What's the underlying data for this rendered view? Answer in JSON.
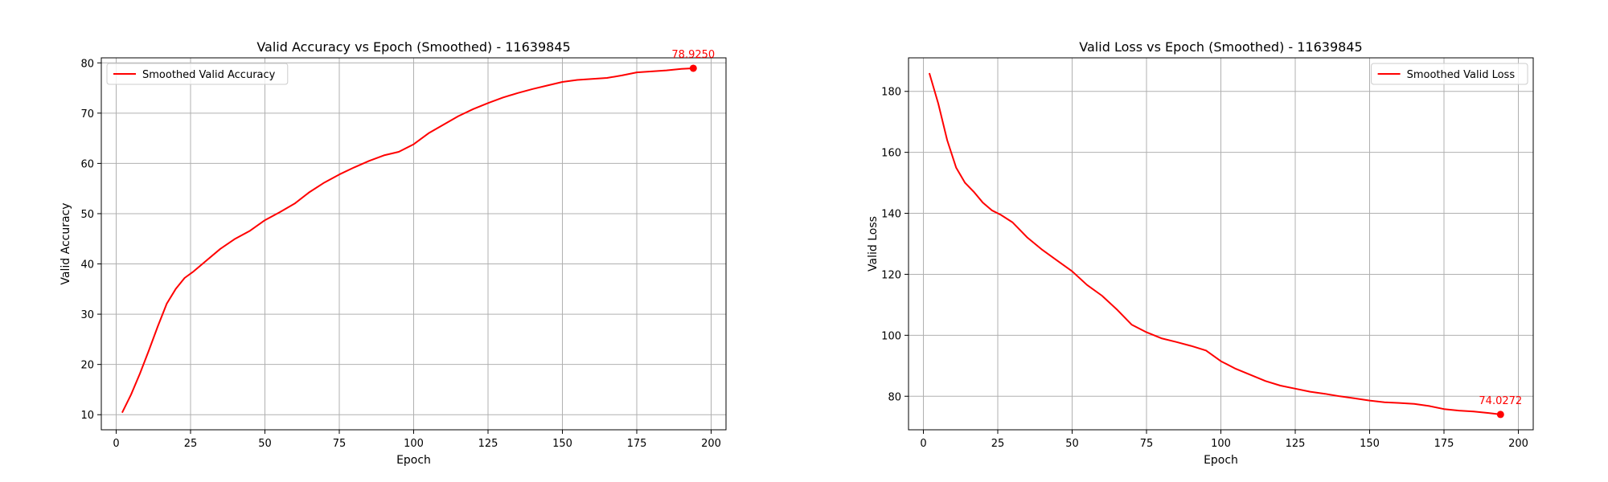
{
  "chart_data": [
    {
      "type": "line",
      "title": "Valid Accuracy vs Epoch (Smoothed) - 11639845",
      "xlabel": "Epoch",
      "ylabel": "Valid Accuracy",
      "xlim": [
        -5,
        205
      ],
      "ylim": [
        7,
        81
      ],
      "xticks": [
        0,
        25,
        50,
        75,
        100,
        125,
        150,
        175,
        200
      ],
      "yticks": [
        10,
        20,
        30,
        40,
        50,
        60,
        70,
        80
      ],
      "grid": true,
      "legend_position": "top-left",
      "series": [
        {
          "name": "Smoothed Valid Accuracy",
          "color": "#ff0000",
          "x": [
            2,
            5,
            8,
            11,
            14,
            17,
            20,
            23,
            26,
            30,
            35,
            40,
            45,
            50,
            55,
            60,
            65,
            70,
            75,
            80,
            85,
            90,
            95,
            100,
            105,
            110,
            115,
            120,
            125,
            130,
            135,
            140,
            145,
            150,
            155,
            160,
            165,
            170,
            175,
            180,
            185,
            190,
            194
          ],
          "y": [
            10.4,
            14.0,
            18.2,
            22.8,
            27.6,
            32.1,
            35.0,
            37.2,
            38.5,
            40.5,
            43.0,
            45.0,
            46.6,
            48.7,
            50.3,
            52.0,
            54.3,
            56.2,
            57.8,
            59.2,
            60.5,
            61.6,
            62.3,
            63.8,
            66.0,
            67.7,
            69.4,
            70.8,
            72.0,
            73.1,
            74.0,
            74.8,
            75.5,
            76.2,
            76.6,
            76.8,
            77.0,
            77.5,
            78.1,
            78.3,
            78.5,
            78.8,
            78.925
          ]
        }
      ],
      "end_label": "78.9250"
    },
    {
      "type": "line",
      "title": "Valid Loss vs Epoch (Smoothed) - 11639845",
      "xlabel": "Epoch",
      "ylabel": "Valid Loss",
      "xlim": [
        -5,
        205
      ],
      "ylim": [
        69,
        191
      ],
      "xticks": [
        0,
        25,
        50,
        75,
        100,
        125,
        150,
        175,
        200
      ],
      "yticks": [
        80,
        100,
        120,
        140,
        160,
        180
      ],
      "grid": true,
      "legend_position": "top-right",
      "series": [
        {
          "name": "Smoothed Valid Loss",
          "color": "#ff0000",
          "x": [
            2,
            5,
            8,
            11,
            14,
            17,
            20,
            23,
            26,
            30,
            35,
            40,
            45,
            50,
            55,
            60,
            65,
            70,
            75,
            80,
            85,
            90,
            95,
            100,
            105,
            110,
            115,
            120,
            125,
            130,
            135,
            140,
            145,
            150,
            155,
            160,
            165,
            170,
            175,
            180,
            185,
            190,
            194
          ],
          "y": [
            186.0,
            176.0,
            164.0,
            155.0,
            150.0,
            147.0,
            143.5,
            141.0,
            139.5,
            137.0,
            132.0,
            128.0,
            124.5,
            121.0,
            116.5,
            113.0,
            108.5,
            103.5,
            101.0,
            99.0,
            97.8,
            96.5,
            95.0,
            91.5,
            89.0,
            87.0,
            85.0,
            83.5,
            82.5,
            81.5,
            80.8,
            80.0,
            79.3,
            78.6,
            78.0,
            77.8,
            77.5,
            76.8,
            75.8,
            75.3,
            75.0,
            74.5,
            74.0272
          ]
        }
      ],
      "end_label": "74.0272"
    }
  ]
}
